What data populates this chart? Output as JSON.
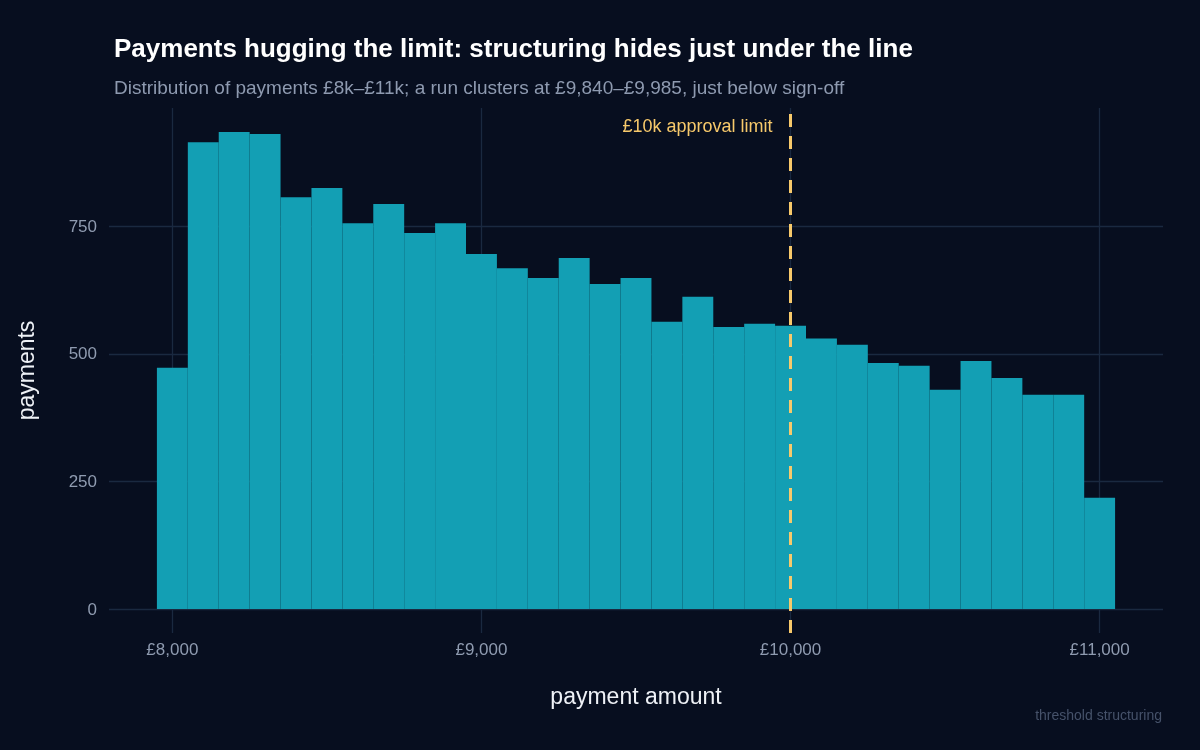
{
  "chart_data": {
    "type": "histogram",
    "title": "Payments hugging the limit: structuring hides just under the line",
    "subtitle": "Distribution of payments £8k–£11k; a run clusters at £9,840–£9,985, just below sign-off",
    "xlabel": "payment amount",
    "ylabel": "payments",
    "bins": [
      7950,
      8050,
      8150,
      8250,
      8350,
      8450,
      8550,
      8650,
      8750,
      8850,
      8950,
      9050,
      9150,
      9250,
      9350,
      9450,
      9550,
      9650,
      9750,
      9850,
      9950,
      10050,
      10150,
      10250,
      10350,
      10450,
      10550,
      10650,
      10750,
      10850,
      10950,
      11050
    ],
    "values": [
      473,
      915,
      935,
      931,
      807,
      825,
      756,
      794,
      737,
      756,
      696,
      668,
      649,
      688,
      637,
      649,
      563,
      612,
      553,
      559,
      555,
      530,
      518,
      482,
      477,
      430,
      486,
      453,
      420,
      420,
      218
    ],
    "color": "#139fb4",
    "xlim": [
      7795,
      11205
    ],
    "ylim": [
      -47,
      982
    ],
    "xticks": [
      {
        "value": 8000,
        "label": "£8,000"
      },
      {
        "value": 9000,
        "label": "£9,000"
      },
      {
        "value": 10000,
        "label": "£10,000"
      },
      {
        "value": 11000,
        "label": "£11,000"
      }
    ],
    "yticks": [
      0,
      250,
      500,
      750
    ],
    "grid": true,
    "ref_lines": [
      {
        "axis": "x",
        "value": 10000,
        "label": "£10k approval limit",
        "color": "#f7c96b",
        "line_style": "dashed"
      }
    ],
    "annotations": [
      "threshold structuring"
    ]
  }
}
